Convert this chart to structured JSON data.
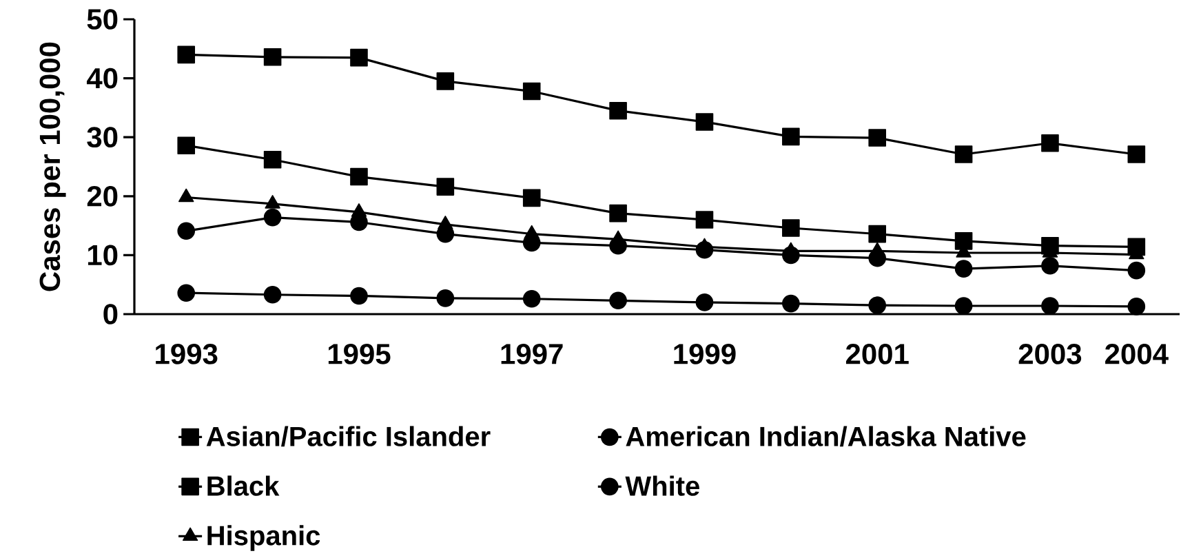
{
  "chart_data": {
    "type": "line",
    "ylabel": "Cases per 100,000",
    "x": [
      1993,
      1994,
      1995,
      1996,
      1997,
      1998,
      1999,
      2000,
      2001,
      2002,
      2003,
      2004
    ],
    "xlim": [
      1992.4,
      2004.5
    ],
    "xticks": [
      1993,
      1995,
      1997,
      1999,
      2001,
      2003,
      2004
    ],
    "ylim": [
      0,
      50
    ],
    "yticks": [
      0,
      10,
      20,
      30,
      40,
      50
    ],
    "grid": false,
    "legend": "bottom",
    "line_style": "solid",
    "series": [
      {
        "name": "Asian/Pacific Islander",
        "color": "#000000",
        "marker": "square",
        "values": [
          44.0,
          43.6,
          43.5,
          39.5,
          37.8,
          34.5,
          32.6,
          30.1,
          29.9,
          27.1,
          29.0,
          27.1
        ]
      },
      {
        "name": "American Indian/Alaska Native",
        "color": "#000000",
        "marker": "circle",
        "values": [
          14.1,
          16.4,
          15.6,
          13.6,
          12.1,
          11.6,
          10.9,
          10.0,
          9.5,
          7.7,
          8.2,
          7.4
        ]
      },
      {
        "name": "Black",
        "color": "#000000",
        "marker": "square",
        "values": [
          28.6,
          26.2,
          23.3,
          21.6,
          19.7,
          17.1,
          16.0,
          14.6,
          13.6,
          12.4,
          11.6,
          11.4
        ]
      },
      {
        "name": "White",
        "color": "#000000",
        "marker": "circle",
        "values": [
          3.6,
          3.3,
          3.1,
          2.7,
          2.6,
          2.3,
          2.0,
          1.8,
          1.5,
          1.4,
          1.4,
          1.3
        ]
      },
      {
        "name": "Hispanic",
        "color": "#000000",
        "marker": "triangle",
        "values": [
          19.8,
          18.7,
          17.3,
          15.2,
          13.6,
          12.7,
          11.4,
          10.7,
          10.7,
          10.4,
          10.4,
          10.1
        ]
      }
    ]
  }
}
